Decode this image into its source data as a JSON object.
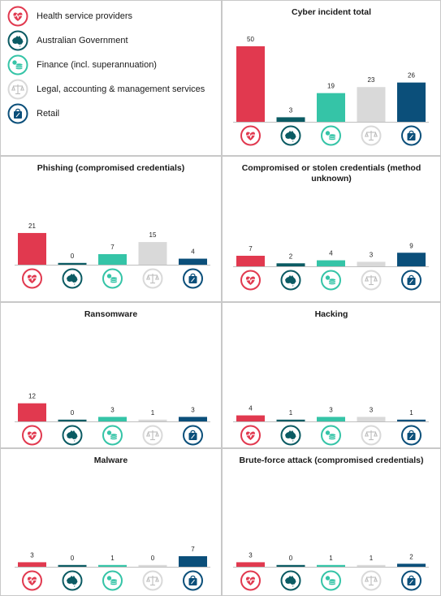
{
  "colors": {
    "Health service providers": "#e1394f",
    "Australian Government": "#0b5b63",
    "Finance (incl. superannuation)": "#35c4a7",
    "Legal, accounting & management services": "#d9d9d9",
    "Retail": "#0b4f7a"
  },
  "legend": [
    {
      "label": "Health service providers",
      "icon": "heart-pulse-icon"
    },
    {
      "label": "Australian Government",
      "icon": "australia-map-icon"
    },
    {
      "label": "Finance (incl. superannuation)",
      "icon": "coin-stack-icon"
    },
    {
      "label": "Legal, accounting & management services",
      "icon": "scales-icon"
    },
    {
      "label": "Retail",
      "icon": "shopping-bag-icon"
    }
  ],
  "chart_data": [
    {
      "type": "bar",
      "title": "Cyber incident total",
      "categories": [
        "Health service providers",
        "Australian Government",
        "Finance (incl. superannuation)",
        "Legal, accounting & management services",
        "Retail"
      ],
      "values": [
        50,
        3,
        19,
        23,
        26
      ],
      "ylim": [
        0,
        50
      ]
    },
    {
      "type": "bar",
      "title": "Phishing (compromised credentials)",
      "categories": [
        "Health service providers",
        "Australian Government",
        "Finance (incl. superannuation)",
        "Legal, accounting & management services",
        "Retail"
      ],
      "values": [
        21,
        0,
        7,
        15,
        4
      ],
      "ylim": [
        0,
        50
      ]
    },
    {
      "type": "bar",
      "title": "Compromised or stolen credentials (method unknown)",
      "categories": [
        "Health service providers",
        "Australian Government",
        "Finance (incl. superannuation)",
        "Legal, accounting & management services",
        "Retail"
      ],
      "values": [
        7,
        2,
        4,
        3,
        9
      ],
      "ylim": [
        0,
        50
      ]
    },
    {
      "type": "bar",
      "title": "Ransomware",
      "categories": [
        "Health service providers",
        "Australian Government",
        "Finance (incl. superannuation)",
        "Legal, accounting & management services",
        "Retail"
      ],
      "values": [
        12,
        0,
        3,
        1,
        3
      ],
      "ylim": [
        0,
        50
      ]
    },
    {
      "type": "bar",
      "title": "Hacking",
      "categories": [
        "Health service providers",
        "Australian Government",
        "Finance (incl. superannuation)",
        "Legal, accounting & management services",
        "Retail"
      ],
      "values": [
        4,
        1,
        3,
        3,
        1
      ],
      "ylim": [
        0,
        50
      ]
    },
    {
      "type": "bar",
      "title": "Malware",
      "categories": [
        "Health service providers",
        "Australian Government",
        "Finance (incl. superannuation)",
        "Legal, accounting & management services",
        "Retail"
      ],
      "values": [
        3,
        0,
        1,
        0,
        7
      ],
      "ylim": [
        0,
        50
      ]
    },
    {
      "type": "bar",
      "title": "Brute-force attack (compromised credentials)",
      "categories": [
        "Health service providers",
        "Australian Government",
        "Finance (incl. superannuation)",
        "Legal, accounting & management services",
        "Retail"
      ],
      "values": [
        3,
        0,
        1,
        1,
        2
      ],
      "ylim": [
        0,
        50
      ]
    }
  ]
}
